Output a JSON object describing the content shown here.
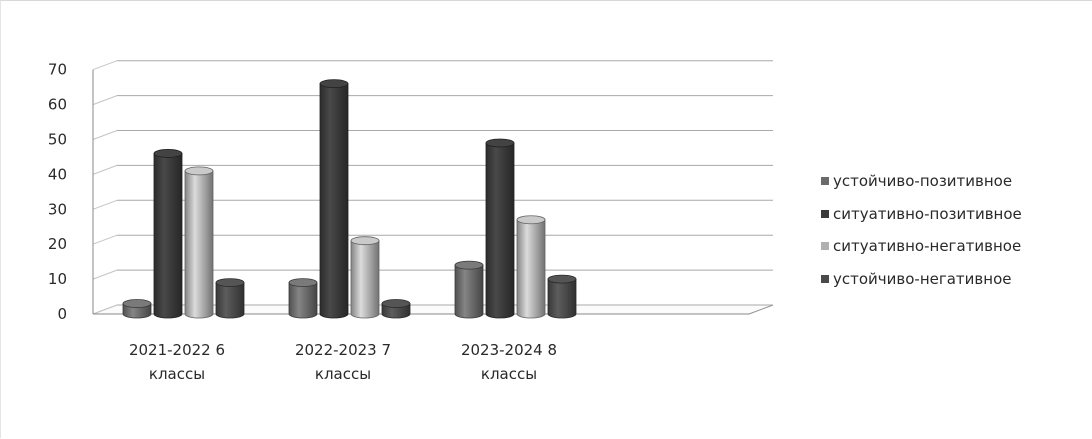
{
  "chart_data": {
    "type": "bar",
    "style": "3d-clustered-column",
    "categories": [
      [
        "2021-2022    6",
        "классы"
      ],
      [
        "2022-2023    7",
        "классы"
      ],
      [
        "2023-2024    8",
        "классы"
      ]
    ],
    "series": [
      {
        "name": "устойчиво-позитивное",
        "values": [
          3,
          9,
          14
        ],
        "color": "#6a6a6a"
      },
      {
        "name": "ситуативно-позитивное",
        "values": [
          46,
          66,
          49
        ],
        "color": "#3a3a3a"
      },
      {
        "name": "ситуативно-негативное",
        "values": [
          41,
          21,
          27
        ],
        "color": "#b0b0b0"
      },
      {
        "name": "устойчиво-негативное",
        "values": [
          9,
          3,
          10
        ],
        "color": "#4a4a4a"
      }
    ],
    "ylim": [
      0,
      70
    ],
    "yticks": [
      0,
      10,
      20,
      30,
      40,
      50,
      60,
      70
    ],
    "grid": true,
    "legend_position": "right"
  }
}
